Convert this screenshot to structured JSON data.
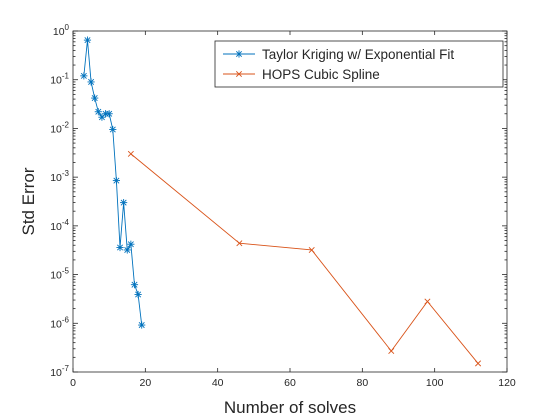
{
  "chart_data": {
    "type": "line",
    "xlabel": "Number of solves",
    "ylabel": "Std Error",
    "xlim": [
      0,
      120
    ],
    "ylim": [
      1e-07,
      1
    ],
    "yscale": "log",
    "grid": false,
    "legend_position": "top-right",
    "x_ticks": [
      {
        "value": 0,
        "label": "0"
      },
      {
        "value": 20,
        "label": "20"
      },
      {
        "value": 40,
        "label": "40"
      },
      {
        "value": 60,
        "label": "60"
      },
      {
        "value": 80,
        "label": "80"
      },
      {
        "value": 100,
        "label": "100"
      },
      {
        "value": 120,
        "label": "120"
      }
    ],
    "y_ticks": [
      {
        "value": 1e-07,
        "base": "10",
        "exp": "-7"
      },
      {
        "value": 1e-06,
        "base": "10",
        "exp": "-6"
      },
      {
        "value": 1e-05,
        "base": "10",
        "exp": "-5"
      },
      {
        "value": 0.0001,
        "base": "10",
        "exp": "-4"
      },
      {
        "value": 0.001,
        "base": "10",
        "exp": "-3"
      },
      {
        "value": 0.01,
        "base": "10",
        "exp": "-2"
      },
      {
        "value": 0.1,
        "base": "10",
        "exp": "-1"
      },
      {
        "value": 1,
        "base": "10",
        "exp": "0"
      }
    ],
    "series": [
      {
        "name": "Taylor Kriging w/ Exponential Fit",
        "color": "#0072BD",
        "marker": "asterisk",
        "x": [
          3,
          4,
          5,
          6,
          7,
          8,
          9,
          10,
          11,
          12,
          13,
          14,
          15,
          16,
          17,
          18,
          19
        ],
        "y": [
          0.12,
          0.65,
          0.09,
          0.042,
          0.022,
          0.017,
          0.02,
          0.02,
          0.0095,
          0.00085,
          3.6e-05,
          0.0003,
          3.2e-05,
          4.2e-05,
          6.2e-06,
          3.9e-06,
          9.2e-07
        ]
      },
      {
        "name": "HOPS Cubic Spline",
        "color": "#D95319",
        "marker": "x",
        "x": [
          16,
          46,
          66,
          88,
          98,
          112
        ],
        "y": [
          0.003,
          4.4e-05,
          3.2e-05,
          2.7e-07,
          2.8e-06,
          1.5e-07
        ]
      }
    ]
  }
}
